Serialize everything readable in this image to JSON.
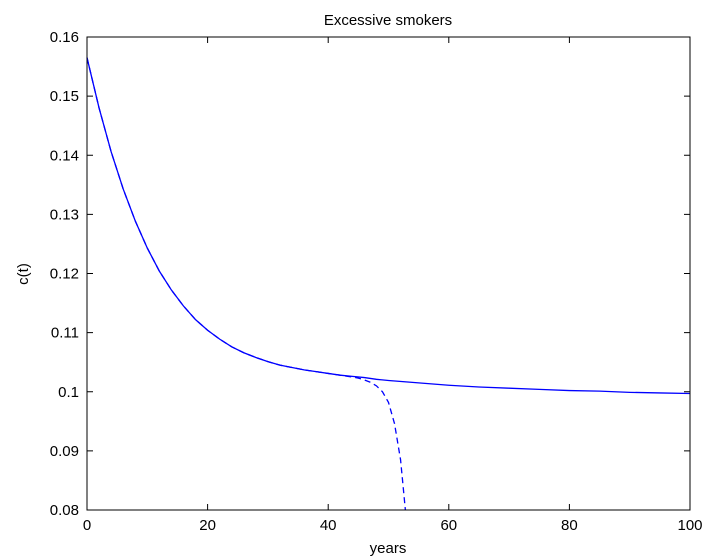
{
  "chart_data": {
    "type": "line",
    "title": "Excessive smokers",
    "xlabel": "years",
    "ylabel": "c(t)",
    "xlim": [
      0,
      100
    ],
    "ylim": [
      0.08,
      0.16
    ],
    "xticks": [
      0,
      20,
      40,
      60,
      80,
      100
    ],
    "yticks": [
      0.08,
      0.09,
      0.1,
      0.11,
      0.12,
      0.13,
      0.14,
      0.15,
      0.16
    ],
    "xtick_labels": [
      "0",
      "20",
      "40",
      "60",
      "80",
      "100"
    ],
    "ytick_labels": [
      "0.08",
      "0.09",
      "0.1",
      "0.11",
      "0.12",
      "0.13",
      "0.14",
      "0.15",
      "0.16"
    ],
    "grid": false,
    "line_color": "#0000ff",
    "series": [
      {
        "style": "solid",
        "x": [
          0,
          2,
          4,
          6,
          8,
          10,
          12,
          14,
          16,
          18,
          20,
          22,
          24,
          26,
          28,
          30,
          32,
          34,
          36,
          38,
          40,
          42,
          44,
          46,
          48,
          50,
          55,
          60,
          65,
          70,
          75,
          80,
          85,
          90,
          95,
          100
        ],
        "y": [
          0.1565,
          0.148,
          0.1406,
          0.1343,
          0.1289,
          0.1243,
          0.1204,
          0.1172,
          0.1145,
          0.1122,
          0.1104,
          0.1089,
          0.1076,
          0.1066,
          0.1058,
          0.1051,
          0.1045,
          0.1041,
          0.1037,
          0.1034,
          0.1031,
          0.1028,
          0.1026,
          0.1024,
          0.1021,
          0.1019,
          0.1015,
          0.1011,
          0.1008,
          0.1006,
          0.1004,
          0.1002,
          0.1001,
          0.0999,
          0.0998,
          0.0997
        ]
      },
      {
        "style": "dashed",
        "x": [
          0,
          2,
          4,
          6,
          8,
          10,
          12,
          14,
          16,
          18,
          20,
          22,
          24,
          26,
          28,
          30,
          32,
          34,
          36,
          38,
          40,
          42,
          44,
          45,
          46,
          47,
          48,
          49,
          50,
          51,
          52,
          52.8
        ],
        "y": [
          0.1565,
          0.148,
          0.1406,
          0.1343,
          0.1289,
          0.1243,
          0.1204,
          0.1172,
          0.1145,
          0.1122,
          0.1104,
          0.1089,
          0.1076,
          0.1066,
          0.1058,
          0.1051,
          0.1045,
          0.1041,
          0.1037,
          0.1034,
          0.1031,
          0.1028,
          0.1025,
          0.1023,
          0.102,
          0.1016,
          0.101,
          0.1,
          0.0982,
          0.0946,
          0.0885,
          0.08
        ]
      }
    ]
  }
}
